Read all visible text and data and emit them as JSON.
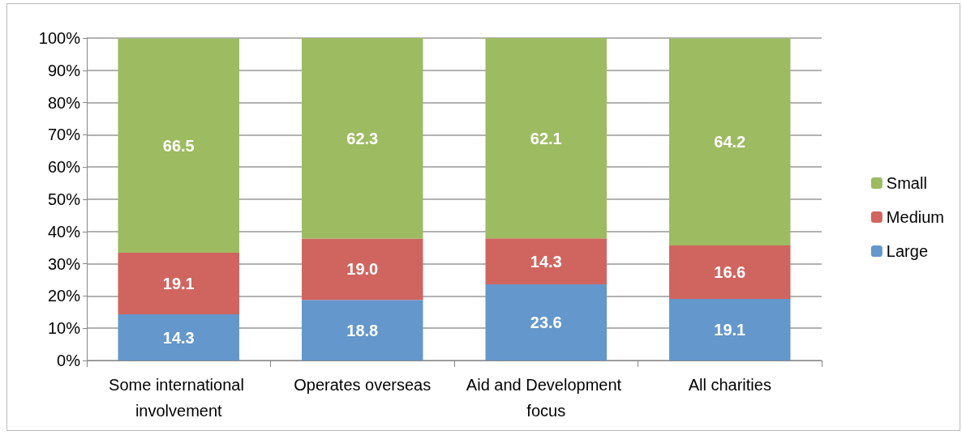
{
  "chart_data": {
    "type": "bar",
    "stacked": true,
    "categories": [
      "Some international involvement",
      "Operates overseas",
      "Aid and Development focus",
      "All charities"
    ],
    "series": [
      {
        "name": "Large",
        "color": "#6497cb",
        "values": [
          14.3,
          18.8,
          23.6,
          19.1
        ],
        "value_labels": [
          "14.3",
          "18.8",
          "23.6",
          "19.1"
        ]
      },
      {
        "name": "Medium",
        "color": "#d0655f",
        "values": [
          19.1,
          19.0,
          14.3,
          16.6
        ],
        "value_labels": [
          "19.1",
          "19.0",
          "14.3",
          "16.6"
        ]
      },
      {
        "name": "Small",
        "color": "#9dbb61",
        "values": [
          66.5,
          62.3,
          62.1,
          64.2
        ],
        "value_labels": [
          "66.5",
          "62.3",
          "62.1",
          "64.2"
        ]
      }
    ],
    "ylim": [
      0,
      100
    ],
    "yticks": [
      {
        "value": 0,
        "label": "0%"
      },
      {
        "value": 10,
        "label": "10%"
      },
      {
        "value": 20,
        "label": "20%"
      },
      {
        "value": 30,
        "label": "30%"
      },
      {
        "value": 40,
        "label": "40%"
      },
      {
        "value": 50,
        "label": "50%"
      },
      {
        "value": 60,
        "label": "60%"
      },
      {
        "value": 70,
        "label": "70%"
      },
      {
        "value": 80,
        "label": "80%"
      },
      {
        "value": 90,
        "label": "90%"
      },
      {
        "value": 100,
        "label": "100%"
      }
    ],
    "grid": "y",
    "legend": "right"
  }
}
